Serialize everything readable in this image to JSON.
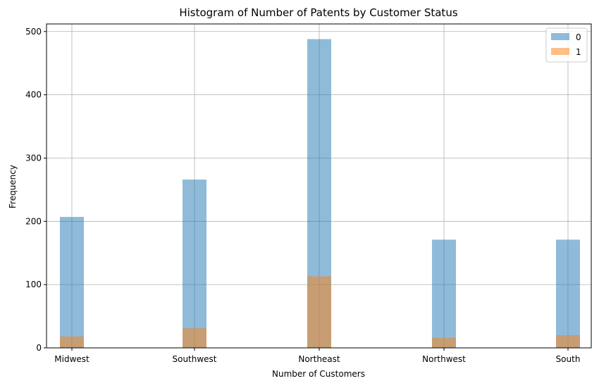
{
  "chart_data": {
    "type": "bar",
    "title": "Histogram of Number of Patents by Customer Status",
    "xlabel": "Number of Customers",
    "ylabel": "Frequency",
    "categories": [
      "Midwest",
      "Southwest",
      "Northeast",
      "Northwest",
      "South"
    ],
    "ylim": [
      0,
      512
    ],
    "yticks": [
      0,
      100,
      200,
      300,
      400,
      500
    ],
    "grid": true,
    "legend_position": "top-right",
    "series": [
      {
        "name": "0",
        "color": "#1f77b4",
        "opacity": 0.5,
        "values": [
          207,
          266,
          488,
          171,
          171
        ]
      },
      {
        "name": "1",
        "color": "#ff7f0e",
        "opacity": 0.5,
        "values": [
          18,
          31,
          113,
          16,
          20
        ]
      }
    ]
  }
}
